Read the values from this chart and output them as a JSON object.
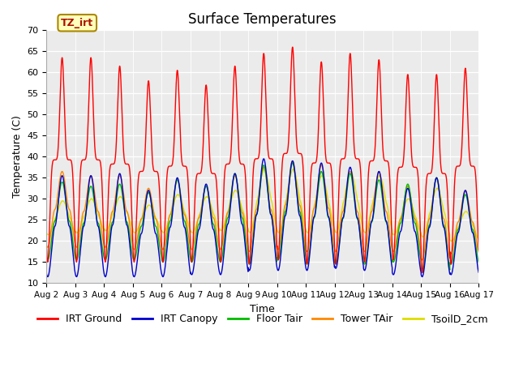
{
  "title": "Surface Temperatures",
  "xlabel": "Time",
  "ylabel": "Temperature (C)",
  "ylim": [
    10,
    70
  ],
  "series_labels": [
    "IRT Ground",
    "IRT Canopy",
    "Floor Tair",
    "Tower TAir",
    "TsoilD_2cm"
  ],
  "series_colors": [
    "#ff0000",
    "#0000cc",
    "#00bb00",
    "#ff8800",
    "#dddd00"
  ],
  "annotation_text": "TZ_irt",
  "annotation_bg": "#ffffbb",
  "annotation_border": "#aa8800",
  "n_days": 15,
  "day_labels": [
    "Aug 2",
    "Aug 3",
    "Aug 4",
    "Aug 5",
    "Aug 6",
    "Aug 7",
    "Aug 8",
    "Aug 9",
    "Aug 10",
    "Aug 11",
    "Aug 12",
    "Aug 13",
    "Aug 14",
    "Aug 15",
    "Aug 16",
    "Aug 17"
  ],
  "irt_ground_peaks": [
    63.5,
    63.5,
    61.5,
    58.0,
    60.5,
    57.0,
    61.5,
    64.5,
    66.0,
    62.5,
    64.5,
    63.0,
    59.5,
    59.5,
    61.0
  ],
  "irt_ground_mins": [
    15.0,
    15.0,
    15.0,
    15.0,
    15.0,
    15.0,
    15.0,
    14.5,
    15.5,
    14.5,
    14.5,
    15.0,
    15.5,
    12.5,
    14.5
  ],
  "irt_canopy_peaks": [
    35.5,
    35.5,
    36.0,
    32.0,
    35.0,
    33.5,
    36.0,
    39.5,
    39.0,
    38.5,
    37.5,
    36.5,
    32.5,
    35.0,
    32.0
  ],
  "irt_canopy_mins": [
    11.5,
    11.5,
    11.5,
    11.5,
    11.5,
    12.0,
    12.0,
    13.0,
    13.0,
    13.0,
    13.5,
    13.0,
    12.0,
    11.5,
    12.0
  ],
  "floor_tair_peaks": [
    34.0,
    33.0,
    33.5,
    31.5,
    34.5,
    33.0,
    36.0,
    38.0,
    38.5,
    36.5,
    36.0,
    34.5,
    33.5,
    35.0,
    31.0
  ],
  "floor_tair_mins": [
    15.5,
    15.5,
    15.5,
    15.5,
    15.0,
    15.0,
    15.0,
    14.5,
    15.5,
    14.5,
    14.5,
    14.5,
    15.0,
    12.5,
    14.5
  ],
  "tower_tair_peaks": [
    36.5,
    35.5,
    35.5,
    32.5,
    34.5,
    33.0,
    35.5,
    37.5,
    39.0,
    38.0,
    36.5,
    36.5,
    33.0,
    35.0,
    32.0
  ],
  "tower_tair_mins": [
    18.5,
    18.5,
    18.5,
    18.0,
    18.0,
    18.0,
    18.0,
    17.5,
    18.0,
    17.5,
    17.5,
    17.5,
    17.5,
    15.5,
    17.0
  ],
  "tsoil_peaks": [
    29.5,
    30.0,
    30.5,
    28.5,
    31.0,
    30.5,
    32.0,
    37.0,
    37.0,
    35.5,
    36.5,
    35.5,
    30.0,
    32.5,
    27.0
  ],
  "tsoil_mins": [
    21.5,
    22.0,
    22.5,
    22.0,
    22.0,
    22.0,
    22.5,
    22.0,
    22.0,
    22.0,
    22.0,
    22.0,
    21.5,
    21.0,
    20.0
  ],
  "legend_fontsize": 9,
  "tick_fontsize": 8,
  "title_fontsize": 12
}
